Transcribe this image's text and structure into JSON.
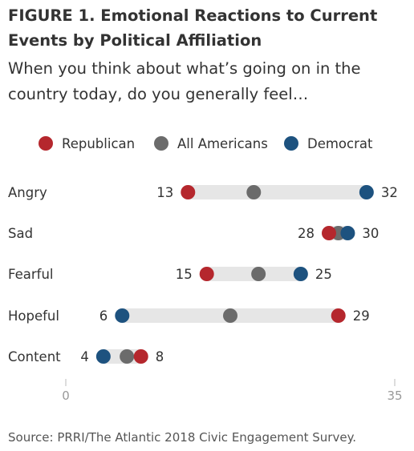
{
  "chart_data": {
    "type": "dot",
    "title": "FIGURE 1.  Emotional Reactions to Current Events by Political Affiliation",
    "subtitle": "When you think about what’s going on in the country today, do you generally feel…",
    "xlim": [
      0,
      35
    ],
    "x_ticks": [
      "0",
      "35"
    ],
    "legend_position": "top",
    "series": [
      {
        "name": "Republican",
        "color": "#b5272d"
      },
      {
        "name": "All Americans",
        "color": "#6b6b6b"
      },
      {
        "name": "Democrat",
        "color": "#1d527f"
      }
    ],
    "categories": [
      "Angry",
      "Sad",
      "Fearful",
      "Hopeful",
      "Content"
    ],
    "values": {
      "Republican": [
        13,
        28,
        15,
        29,
        8
      ],
      "All Americans": [
        20,
        29,
        20.5,
        17.5,
        6.5
      ],
      "Democrat": [
        32,
        30,
        25,
        6,
        4
      ]
    },
    "left_labels": [
      "13",
      "28",
      "15",
      "6",
      "4"
    ],
    "right_labels": [
      "32",
      "30",
      "25",
      "29",
      "8"
    ],
    "source": "Source: PRRI/The Atlantic 2018 Civic Engagement Survey."
  }
}
